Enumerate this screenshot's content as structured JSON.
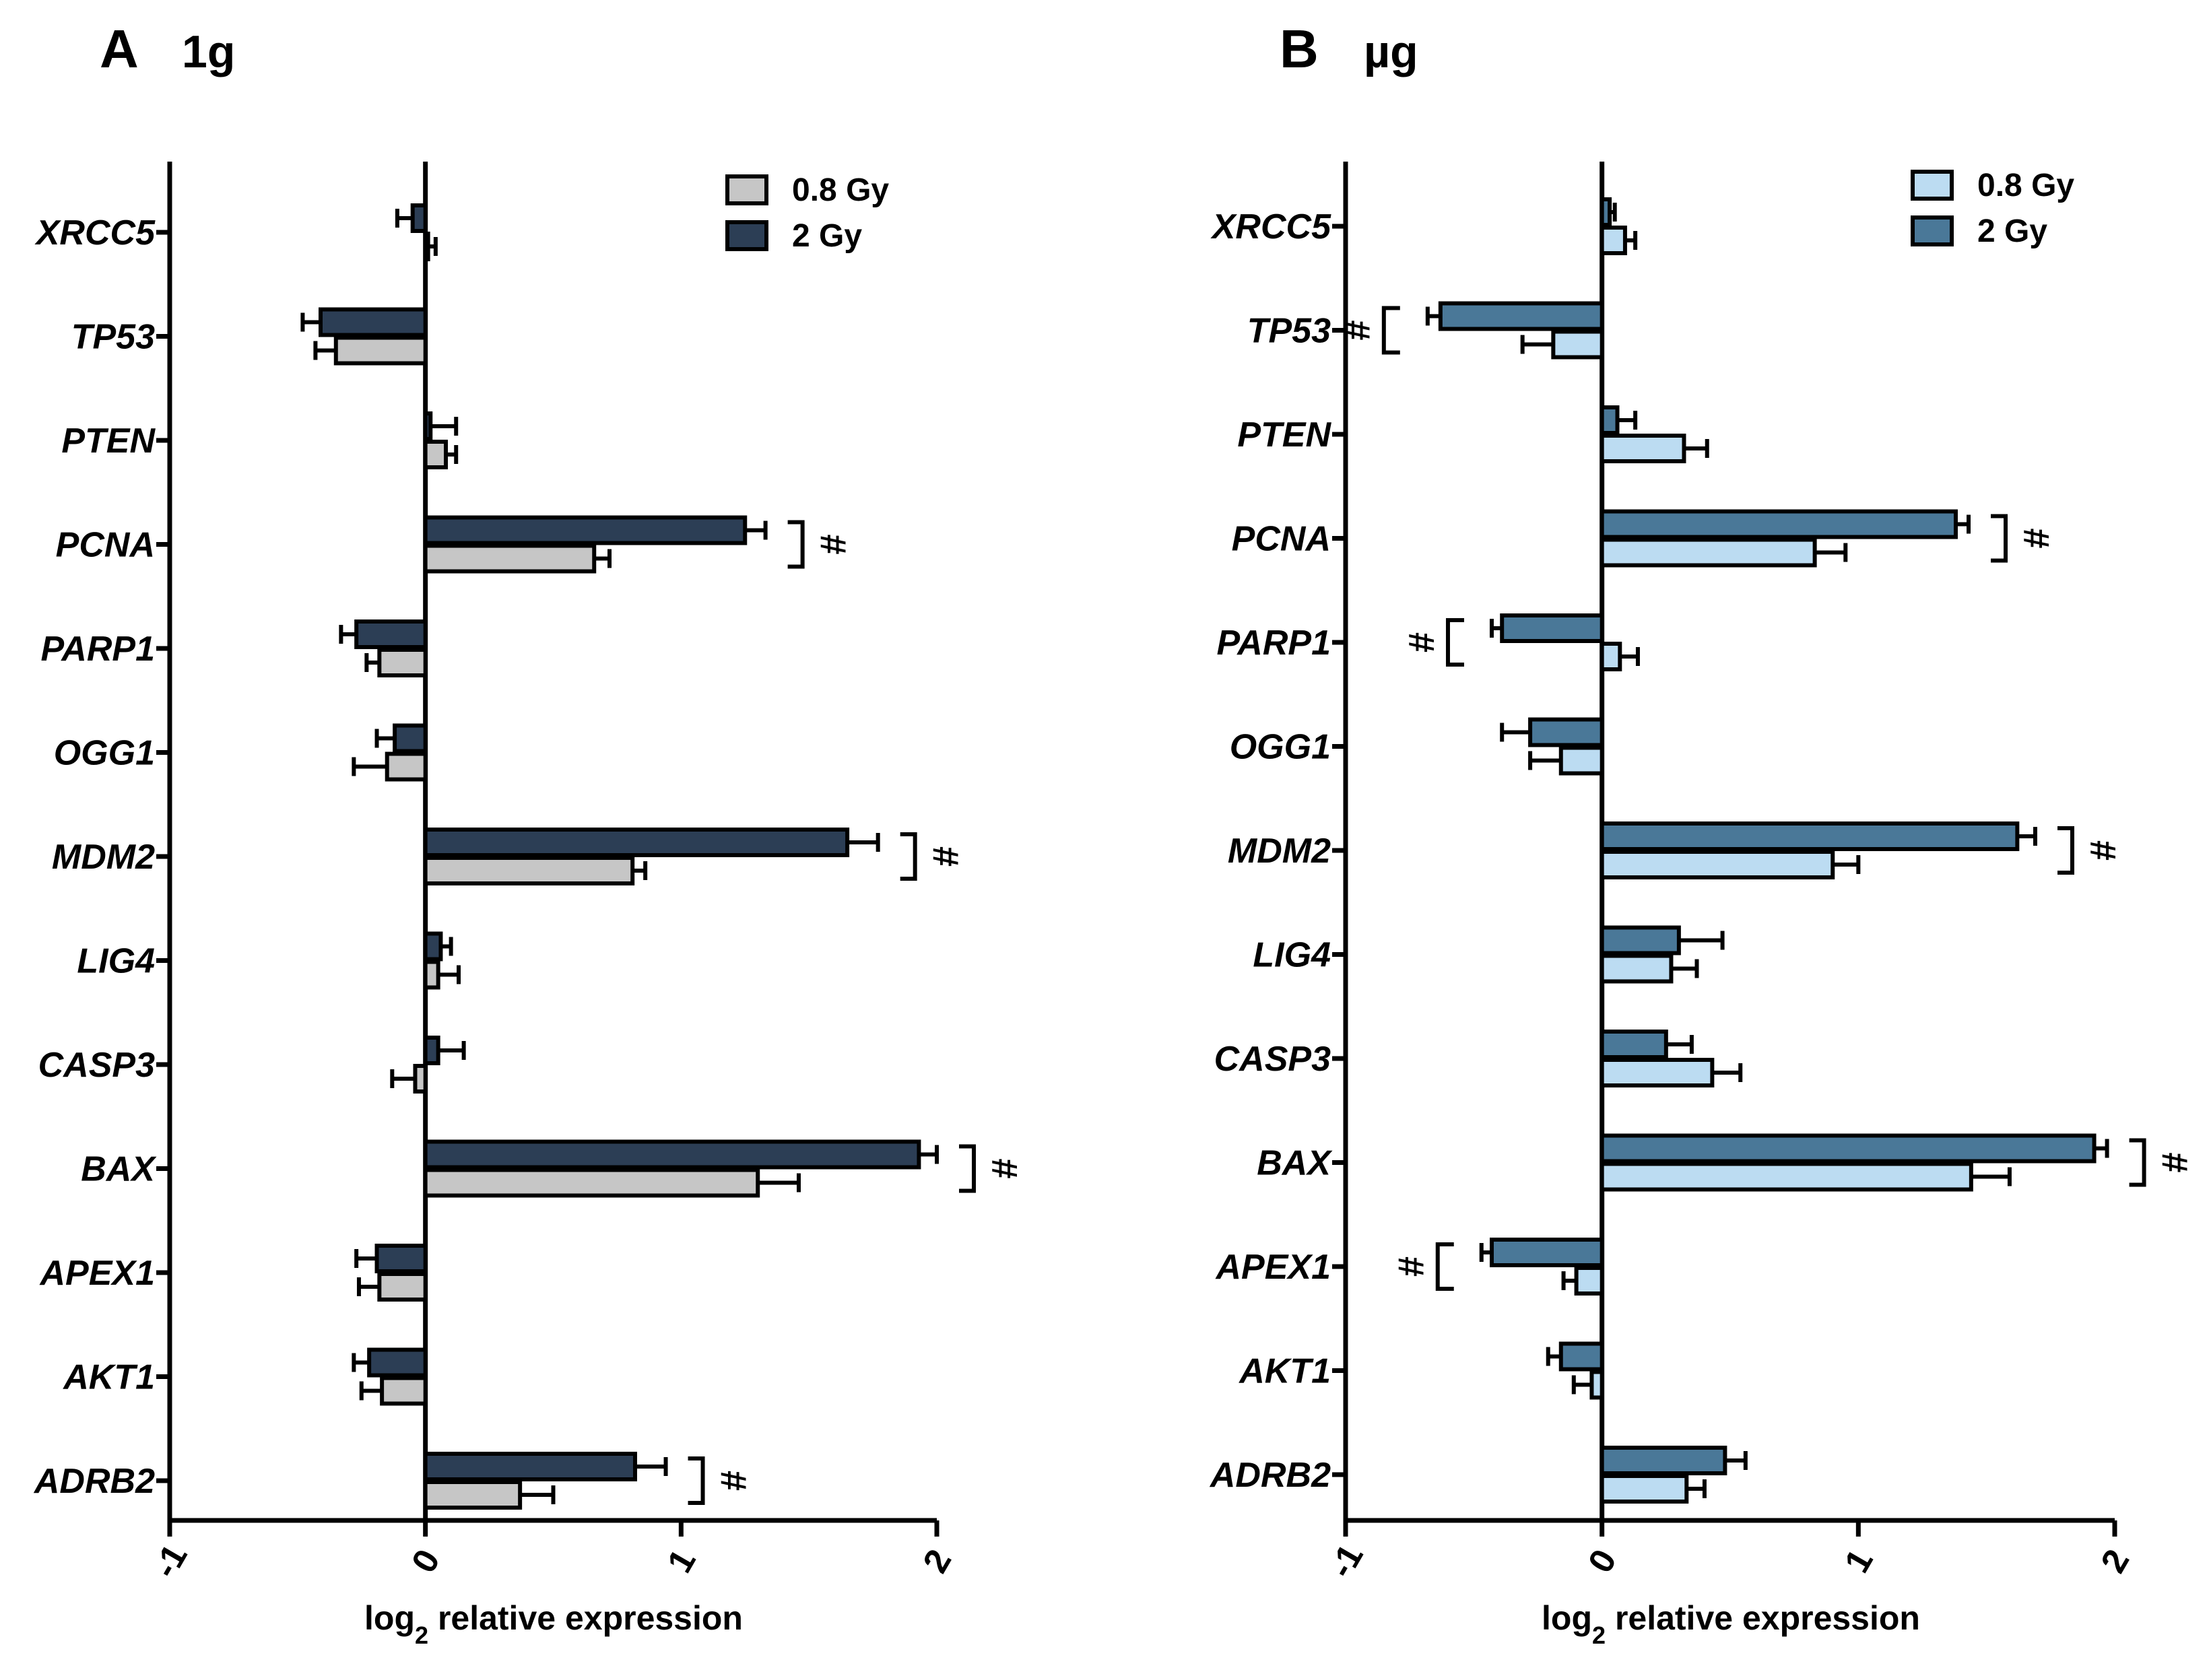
{
  "chart_data": [
    {
      "type": "bar",
      "orientation": "horizontal",
      "panel": "A",
      "condition": "1g",
      "xlabel_main": "log",
      "xlabel_sub": "2",
      "xlabel_rest": " relative expression",
      "xlim": [
        -1,
        2
      ],
      "xticks": [
        "-1",
        "0",
        "1",
        "2"
      ],
      "categories": [
        "XRCC5",
        "TP53",
        "PTEN",
        "PCNA",
        "PARP1",
        "OGG1",
        "MDM2",
        "LIG4",
        "CASP3",
        "BAX",
        "APEX1",
        "AKT1",
        "ADRB2"
      ],
      "series": [
        {
          "name": "0.8 Gy",
          "color": "#c6c6c6",
          "values": [
            0.01,
            -0.35,
            0.08,
            0.66,
            -0.18,
            -0.15,
            0.81,
            0.05,
            -0.04,
            1.3,
            -0.18,
            -0.17,
            0.37
          ],
          "errors": [
            0.03,
            0.08,
            0.04,
            0.06,
            0.05,
            0.13,
            0.05,
            0.08,
            0.09,
            0.16,
            0.08,
            0.08,
            0.13
          ]
        },
        {
          "name": "2 Gy",
          "color": "#2c3e55",
          "values": [
            -0.05,
            -0.41,
            0.02,
            1.25,
            -0.27,
            -0.12,
            1.65,
            0.06,
            0.05,
            1.93,
            -0.19,
            -0.22,
            0.82
          ],
          "errors": [
            0.06,
            0.07,
            0.1,
            0.08,
            0.06,
            0.07,
            0.12,
            0.04,
            0.1,
            0.07,
            0.08,
            0.06,
            0.12
          ]
        }
      ],
      "significance": {
        "marker": "#",
        "categories": [
          "PCNA",
          "MDM2",
          "BAX",
          "ADRB2"
        ],
        "side": "right"
      }
    },
    {
      "type": "bar",
      "orientation": "horizontal",
      "panel": "B",
      "condition": "µg",
      "xlabel_main": "log",
      "xlabel_sub": "2",
      "xlabel_rest": " relative expression",
      "xlim": [
        -1,
        2
      ],
      "xticks": [
        "-1",
        "0",
        "1",
        "2"
      ],
      "categories": [
        "XRCC5",
        "TP53",
        "PTEN",
        "PCNA",
        "PARP1",
        "OGG1",
        "MDM2",
        "LIG4",
        "CASP3",
        "BAX",
        "APEX1",
        "AKT1",
        "ADRB2"
      ],
      "series": [
        {
          "name": "0.8 Gy",
          "color": "#bcdcf2",
          "values": [
            0.09,
            -0.19,
            0.32,
            0.83,
            0.07,
            -0.16,
            0.9,
            0.27,
            0.43,
            1.44,
            -0.1,
            -0.04,
            0.33
          ],
          "errors": [
            0.04,
            0.12,
            0.09,
            0.12,
            0.07,
            0.12,
            0.1,
            0.1,
            0.11,
            0.15,
            0.05,
            0.07,
            0.07
          ]
        },
        {
          "name": "2 Gy",
          "color": "#4a7898",
          "values": [
            0.03,
            -0.63,
            0.06,
            1.38,
            -0.39,
            -0.28,
            1.62,
            0.3,
            0.25,
            1.92,
            -0.43,
            -0.16,
            0.48
          ],
          "errors": [
            0.02,
            0.05,
            0.07,
            0.05,
            0.04,
            0.11,
            0.07,
            0.17,
            0.1,
            0.05,
            0.04,
            0.05,
            0.08
          ]
        }
      ],
      "significance": {
        "marker": "#",
        "categories": [
          "TP53",
          "PARP1",
          "APEX1"
        ],
        "side": "left",
        "categories_right": [
          "PCNA",
          "MDM2",
          "BAX"
        ]
      }
    }
  ]
}
